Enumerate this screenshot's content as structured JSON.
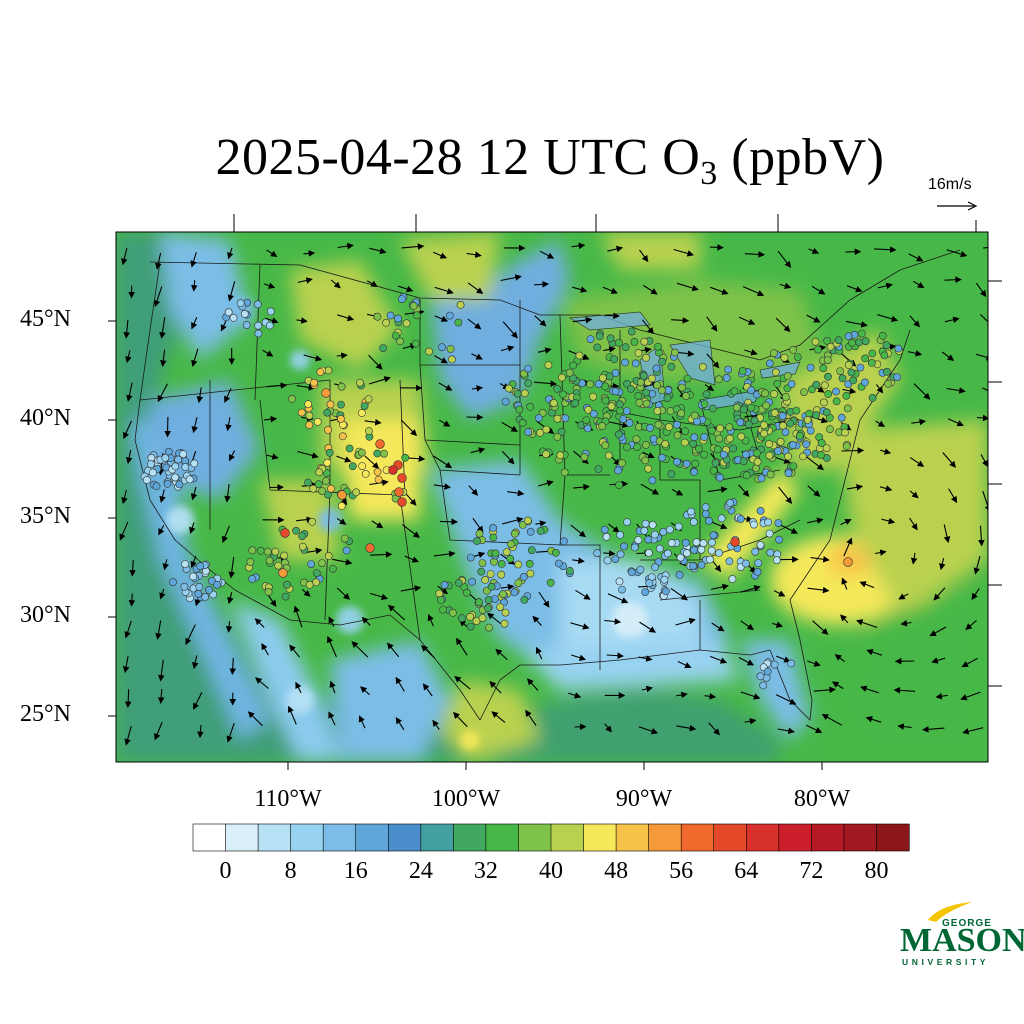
{
  "title": {
    "date": "2025-04-28",
    "hour": "12 UTC",
    "species": "O",
    "subscript": "3",
    "units": "(ppbV)"
  },
  "wind_reference": {
    "label": "16m/s"
  },
  "latitude_labels": [
    "45°N",
    "40°N",
    "35°N",
    "30°N",
    "25°N"
  ],
  "longitude_labels": [
    "110°W",
    "100°W",
    "90°W",
    "80°W"
  ],
  "colorbar": {
    "tick_labels": [
      "0",
      "8",
      "16",
      "24",
      "32",
      "40",
      "48",
      "56",
      "64",
      "72",
      "80"
    ],
    "colors": [
      "#ffffff",
      "#d9f0fa",
      "#b7e2f6",
      "#98d2f1",
      "#7bbde6",
      "#5fa6db",
      "#4a8fcc",
      "#43a0a0",
      "#41a860",
      "#47b847",
      "#7fc24a",
      "#b9d150",
      "#f5e85a",
      "#f7c24a",
      "#f59a3a",
      "#ef6a2c",
      "#e44a2a",
      "#d8302a",
      "#cc1f2c",
      "#b51a24",
      "#a11820",
      "#8c1719"
    ]
  },
  "map": {
    "station_count_description": "",
    "colors": {
      "ocean_blue_green": "#46a06a",
      "land_green": "#47b847",
      "low_blue": "#7bbde6",
      "light_blue": "#b7e2f6",
      "yellow_high": "#f5e85a",
      "orange_high": "#f59a3a",
      "red_high": "#d8302a"
    }
  },
  "logo": {
    "line1": "GEORGE",
    "line2": "MASON",
    "line3": "UNIVERSITY",
    "color": "#006633"
  }
}
